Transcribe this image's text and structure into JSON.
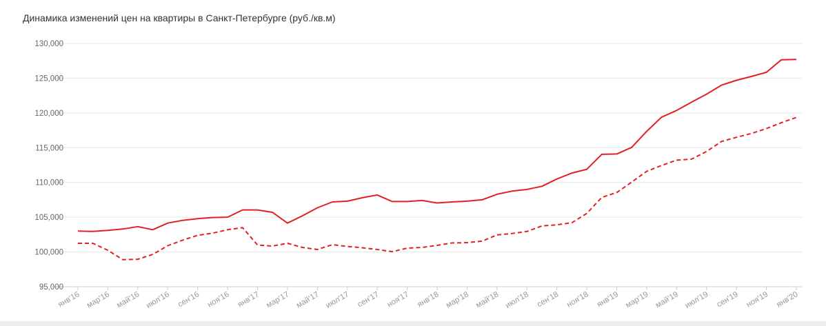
{
  "chart_data": {
    "type": "line",
    "title": "Динамика изменений цен на квартиры в Санкт-Петербурге (руб./кв.м)",
    "xlabel": "",
    "ylabel": "",
    "ylim": [
      95000,
      130000
    ],
    "yticks": [
      95000,
      100000,
      105000,
      110000,
      115000,
      120000,
      125000,
      130000
    ],
    "ytick_labels": [
      "95,000",
      "100,000",
      "105,000",
      "110,000",
      "115,000",
      "120,000",
      "125,000",
      "130,000"
    ],
    "grid": true,
    "legend": "none",
    "x": [
      "янв'16",
      "фев'16",
      "мар'16",
      "апр'16",
      "май'16",
      "июн'16",
      "июл'16",
      "авг'16",
      "сен'16",
      "окт'16",
      "ноя'16",
      "дек'16",
      "янв'17",
      "фев'17",
      "мар'17",
      "апр'17",
      "май'17",
      "июн'17",
      "июл'17",
      "авг'17",
      "сен'17",
      "окт'17",
      "ноя'17",
      "дек'17",
      "янв'18",
      "фев'18",
      "мар'18",
      "апр'18",
      "май'18",
      "июн'18",
      "июл'18",
      "авг'18",
      "сен'18",
      "окт'18",
      "ноя'18",
      "дек'18",
      "янв'19",
      "фев'19",
      "мар'19",
      "апр'19",
      "май'19",
      "июн'19",
      "июл'19",
      "авг'19",
      "сен'19",
      "окт'19",
      "ноя'19",
      "дек'19",
      "янв'20"
    ],
    "xtick_labels": [
      "янв'16",
      "мар'16",
      "май'16",
      "июл'16",
      "сен'16",
      "ноя'16",
      "янв'17",
      "мар'17",
      "май'17",
      "июл'17",
      "сен'17",
      "ноя'17",
      "янв'18",
      "мар'18",
      "май'18",
      "июл'18",
      "сен'18",
      "ноя'18",
      "янв'19",
      "мар'19",
      "май'19",
      "июл'19",
      "сен'19",
      "ноя'19",
      "янв'20"
    ],
    "series": [
      {
        "style": "solid",
        "color": "#e31e24",
        "values": [
          103000,
          102950,
          103100,
          103300,
          103650,
          103200,
          104150,
          104550,
          104800,
          104950,
          105000,
          106050,
          106050,
          105700,
          104150,
          105200,
          106350,
          107200,
          107300,
          107800,
          108200,
          107250,
          107250,
          107400,
          107050,
          107200,
          107300,
          107500,
          108300,
          108750,
          109000,
          109450,
          110500,
          111350,
          111900,
          114050,
          114100,
          115050,
          117350,
          119400,
          120350,
          121550,
          122700,
          124000,
          124700,
          125250,
          125850,
          127650,
          127700
        ]
      },
      {
        "style": "dashed",
        "color": "#e31e24",
        "values": [
          101250,
          101250,
          100250,
          98900,
          98950,
          99650,
          100900,
          101700,
          102400,
          102700,
          103200,
          103500,
          101000,
          100850,
          101250,
          100650,
          100350,
          101050,
          100800,
          100600,
          100350,
          100050,
          100550,
          100650,
          100950,
          101300,
          101350,
          101550,
          102450,
          102650,
          102950,
          103750,
          103900,
          104200,
          105550,
          107850,
          108550,
          110050,
          111600,
          112450,
          113200,
          113350,
          114450,
          115900,
          116500,
          117050,
          117750,
          118600,
          119350
        ]
      }
    ]
  }
}
